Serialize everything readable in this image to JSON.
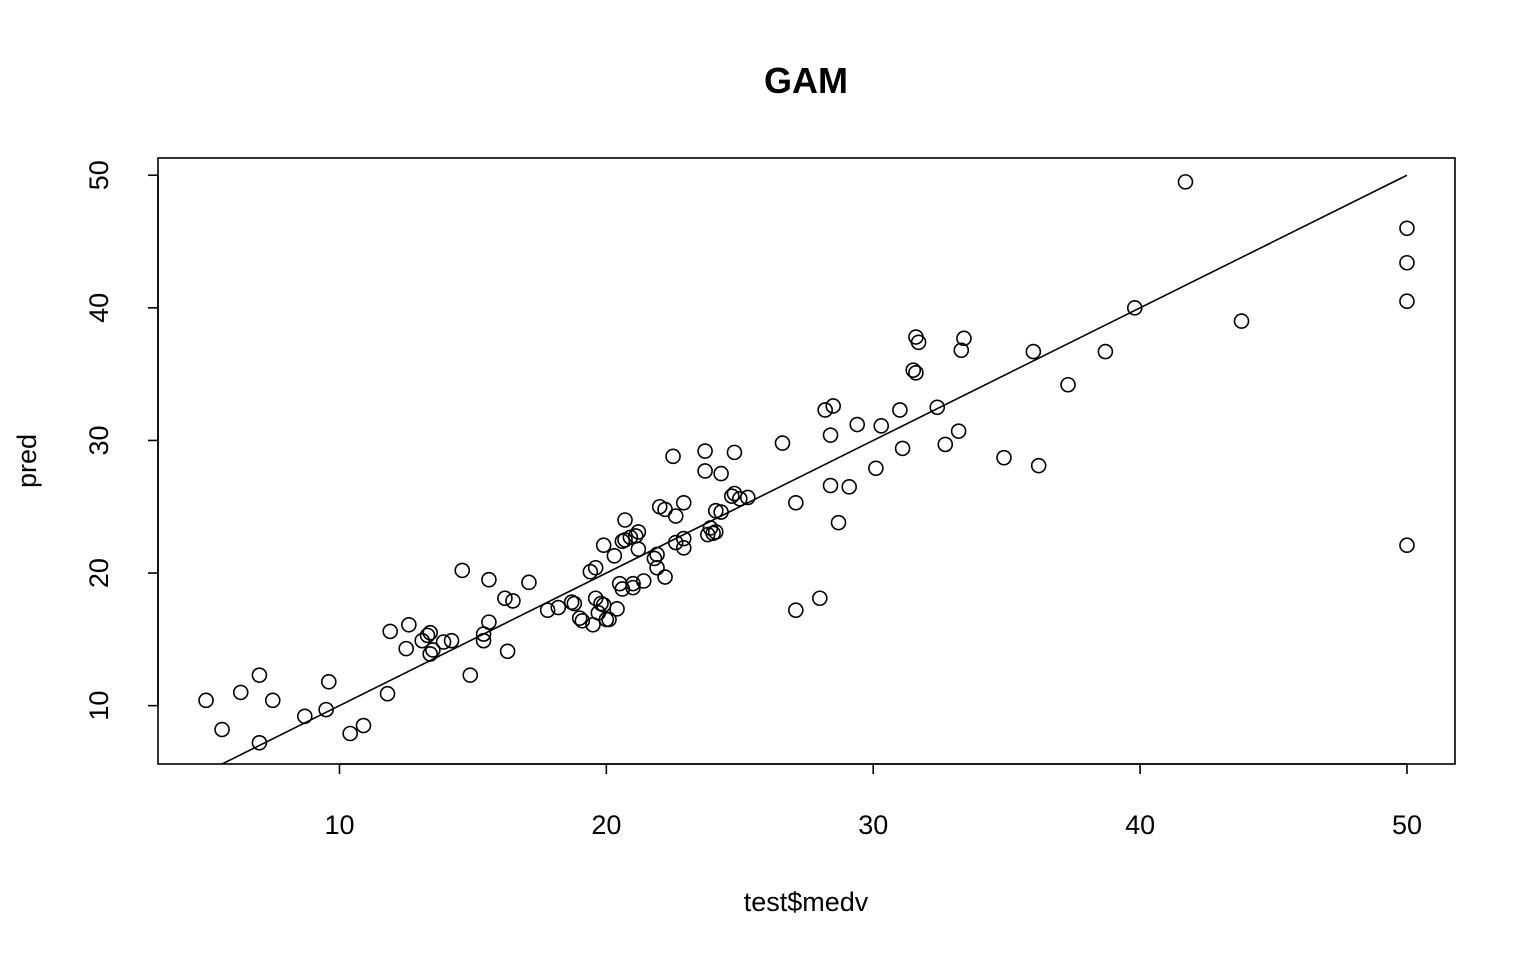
{
  "chart_data": {
    "type": "scatter",
    "title": "GAM",
    "xlabel": "test$medv",
    "ylabel": "pred",
    "xlim": [
      3.2,
      51.8
    ],
    "ylim": [
      5.6,
      51.3
    ],
    "xticks": [
      10,
      20,
      30,
      40,
      50
    ],
    "yticks": [
      10,
      20,
      30,
      40,
      50
    ],
    "grid": false,
    "reference_line": {
      "x": [
        5.6,
        50
      ],
      "y": [
        5.6,
        50
      ]
    },
    "points": [
      [
        5.0,
        10.4
      ],
      [
        5.6,
        8.2
      ],
      [
        6.3,
        11.0
      ],
      [
        7.0,
        12.3
      ],
      [
        7.0,
        7.2
      ],
      [
        7.5,
        10.4
      ],
      [
        8.7,
        9.2
      ],
      [
        9.5,
        9.7
      ],
      [
        9.6,
        11.8
      ],
      [
        10.4,
        7.9
      ],
      [
        10.9,
        8.5
      ],
      [
        11.8,
        10.9
      ],
      [
        11.9,
        15.6
      ],
      [
        12.5,
        14.3
      ],
      [
        12.6,
        16.1
      ],
      [
        13.1,
        14.9
      ],
      [
        13.3,
        15.3
      ],
      [
        13.4,
        15.5
      ],
      [
        13.4,
        13.9
      ],
      [
        13.5,
        14.2
      ],
      [
        13.9,
        14.8
      ],
      [
        14.2,
        14.9
      ],
      [
        14.6,
        20.2
      ],
      [
        14.9,
        12.3
      ],
      [
        15.4,
        14.9
      ],
      [
        15.4,
        15.4
      ],
      [
        15.6,
        19.5
      ],
      [
        15.6,
        16.3
      ],
      [
        16.2,
        18.1
      ],
      [
        16.3,
        14.1
      ],
      [
        16.5,
        17.9
      ],
      [
        17.1,
        19.3
      ],
      [
        17.8,
        17.2
      ],
      [
        18.2,
        17.4
      ],
      [
        18.7,
        17.8
      ],
      [
        18.8,
        17.7
      ],
      [
        19.0,
        16.6
      ],
      [
        19.1,
        16.4
      ],
      [
        19.4,
        20.1
      ],
      [
        19.5,
        16.1
      ],
      [
        19.6,
        18.1
      ],
      [
        19.6,
        20.4
      ],
      [
        19.7,
        17.0
      ],
      [
        19.8,
        17.7
      ],
      [
        19.9,
        22.1
      ],
      [
        19.9,
        17.6
      ],
      [
        20.0,
        16.5
      ],
      [
        20.1,
        16.5
      ],
      [
        20.3,
        21.3
      ],
      [
        20.4,
        17.3
      ],
      [
        20.5,
        19.2
      ],
      [
        20.6,
        18.8
      ],
      [
        20.6,
        22.4
      ],
      [
        20.7,
        22.5
      ],
      [
        20.7,
        24.0
      ],
      [
        20.9,
        22.7
      ],
      [
        21.0,
        19.2
      ],
      [
        21.0,
        18.9
      ],
      [
        21.1,
        22.8
      ],
      [
        21.2,
        23.1
      ],
      [
        21.2,
        21.8
      ],
      [
        21.4,
        19.4
      ],
      [
        21.8,
        21.1
      ],
      [
        21.9,
        20.4
      ],
      [
        21.9,
        21.4
      ],
      [
        22.0,
        25.0
      ],
      [
        22.2,
        24.8
      ],
      [
        22.2,
        19.7
      ],
      [
        22.5,
        28.8
      ],
      [
        22.6,
        22.3
      ],
      [
        22.6,
        24.3
      ],
      [
        22.9,
        22.6
      ],
      [
        22.9,
        21.9
      ],
      [
        22.9,
        25.3
      ],
      [
        23.7,
        29.2
      ],
      [
        23.7,
        27.7
      ],
      [
        23.8,
        22.9
      ],
      [
        23.9,
        23.4
      ],
      [
        24.0,
        23.0
      ],
      [
        24.1,
        24.7
      ],
      [
        24.1,
        23.1
      ],
      [
        24.3,
        24.6
      ],
      [
        24.3,
        27.5
      ],
      [
        24.7,
        25.8
      ],
      [
        24.8,
        29.1
      ],
      [
        24.8,
        26.0
      ],
      [
        25.0,
        25.6
      ],
      [
        25.3,
        25.7
      ],
      [
        26.6,
        29.8
      ],
      [
        27.1,
        17.2
      ],
      [
        27.1,
        25.3
      ],
      [
        28.0,
        18.1
      ],
      [
        28.2,
        32.3
      ],
      [
        28.4,
        26.6
      ],
      [
        28.4,
        30.4
      ],
      [
        28.5,
        32.6
      ],
      [
        28.7,
        23.8
      ],
      [
        29.1,
        26.5
      ],
      [
        29.4,
        31.2
      ],
      [
        30.1,
        27.9
      ],
      [
        30.3,
        31.1
      ],
      [
        31.0,
        32.3
      ],
      [
        31.1,
        29.4
      ],
      [
        31.5,
        35.3
      ],
      [
        31.6,
        35.1
      ],
      [
        31.6,
        37.8
      ],
      [
        31.7,
        37.4
      ],
      [
        32.4,
        32.5
      ],
      [
        32.7,
        29.7
      ],
      [
        33.2,
        30.7
      ],
      [
        33.3,
        36.8
      ],
      [
        33.4,
        37.7
      ],
      [
        34.9,
        28.7
      ],
      [
        36.0,
        36.7
      ],
      [
        36.2,
        28.1
      ],
      [
        37.3,
        34.2
      ],
      [
        38.7,
        36.7
      ],
      [
        39.8,
        40.0
      ],
      [
        41.7,
        49.5
      ],
      [
        43.8,
        39.0
      ],
      [
        50.0,
        46.0
      ],
      [
        50.0,
        43.4
      ],
      [
        50.0,
        40.5
      ],
      [
        50.0,
        22.1
      ]
    ]
  }
}
